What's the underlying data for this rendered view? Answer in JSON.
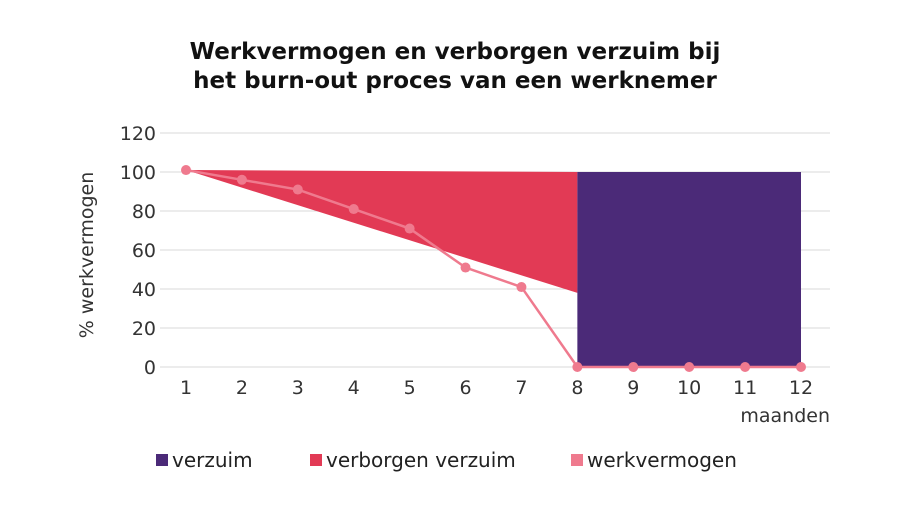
{
  "title": {
    "line1": "Werkvermogen en verborgen verzuim bij",
    "line2": "het burn-out proces van een werknemer"
  },
  "colors": {
    "verzuim": "#4b2a78",
    "verborgen_verzuim": "#e23a55",
    "werkvermogen": "#ef7a8e",
    "grid": "#d9d9d9"
  },
  "chart_data": {
    "type": "line",
    "title": "Werkvermogen en verborgen verzuim bij het burn-out proces van een werknemer",
    "xlabel": "maanden",
    "ylabel": "% werkvermogen",
    "x": [
      1,
      2,
      3,
      4,
      5,
      6,
      7,
      8,
      9,
      10,
      11,
      12
    ],
    "ylim": [
      0,
      120
    ],
    "yticks": [
      0,
      20,
      40,
      60,
      80,
      100,
      120
    ],
    "grid": true,
    "legend_placement": "bottom",
    "series": [
      {
        "name": "werkvermogen",
        "type": "line",
        "x": [
          1,
          2,
          3,
          4,
          5,
          6,
          7,
          8,
          9,
          10,
          11,
          12
        ],
        "values": [
          101,
          96,
          91,
          81,
          71,
          51,
          41,
          0,
          0,
          0,
          0,
          0
        ]
      },
      {
        "name": "verborgen verzuim",
        "type": "area",
        "polygon": [
          [
            1,
            101
          ],
          [
            8,
            100
          ],
          [
            8,
            38
          ]
        ]
      },
      {
        "name": "verzuim",
        "type": "area",
        "x_range": [
          8,
          12
        ],
        "y_range": [
          0,
          100
        ]
      }
    ]
  },
  "legend": {
    "items": [
      "verzuim",
      "verborgen verzuim",
      "werkvermogen"
    ]
  }
}
